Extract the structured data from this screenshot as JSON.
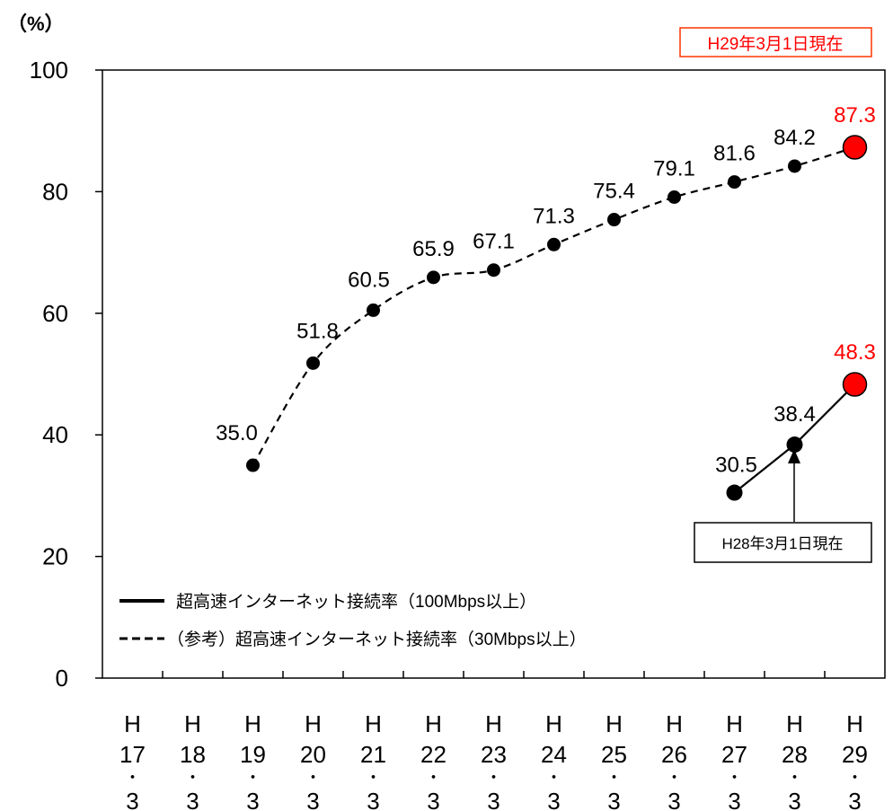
{
  "chart_data": {
    "type": "line",
    "unit_label": "（%）",
    "date_note": "H29年3月1日現在",
    "prev_note": "H28年3月1日現在",
    "ylim": [
      0,
      100
    ],
    "yticks": [
      0,
      20,
      40,
      60,
      80,
      100
    ],
    "categories": [
      [
        "H",
        "17",
        "・",
        "3"
      ],
      [
        "H",
        "18",
        "・",
        "3"
      ],
      [
        "H",
        "19",
        "・",
        "3"
      ],
      [
        "H",
        "20",
        "・",
        "3"
      ],
      [
        "H",
        "21",
        "・",
        "3"
      ],
      [
        "H",
        "22",
        "・",
        "3"
      ],
      [
        "H",
        "23",
        "・",
        "3"
      ],
      [
        "H",
        "24",
        "・",
        "3"
      ],
      [
        "H",
        "25",
        "・",
        "3"
      ],
      [
        "H",
        "26",
        "・",
        "3"
      ],
      [
        "H",
        "27",
        "・",
        "3"
      ],
      [
        "H",
        "28",
        "・",
        "3"
      ],
      [
        "H",
        "29",
        "・",
        "3"
      ]
    ],
    "series": [
      {
        "name": "超高速インターネット接続率（100Mbps以上）",
        "style": "solid",
        "values": [
          null,
          null,
          null,
          null,
          null,
          null,
          null,
          null,
          null,
          null,
          30.5,
          38.4,
          48.3
        ],
        "labels": [
          "",
          "",
          "",
          "",
          "",
          "",
          "",
          "",
          "",
          "",
          "30.5",
          "38.4",
          "48.3"
        ]
      },
      {
        "name": "（参考）超高速インターネット接続率（30Mbps以上）",
        "style": "dashed",
        "values": [
          null,
          null,
          35.0,
          51.8,
          60.5,
          65.9,
          67.1,
          71.3,
          75.4,
          79.1,
          81.6,
          84.2,
          87.3
        ],
        "labels": [
          "",
          "",
          "35.0",
          "51.8",
          "60.5",
          "65.9",
          "67.1",
          "71.3",
          "75.4",
          "79.1",
          "81.6",
          "84.2",
          "87.3"
        ]
      }
    ],
    "highlight_color": "#ff0000",
    "point_color": "#000000"
  }
}
